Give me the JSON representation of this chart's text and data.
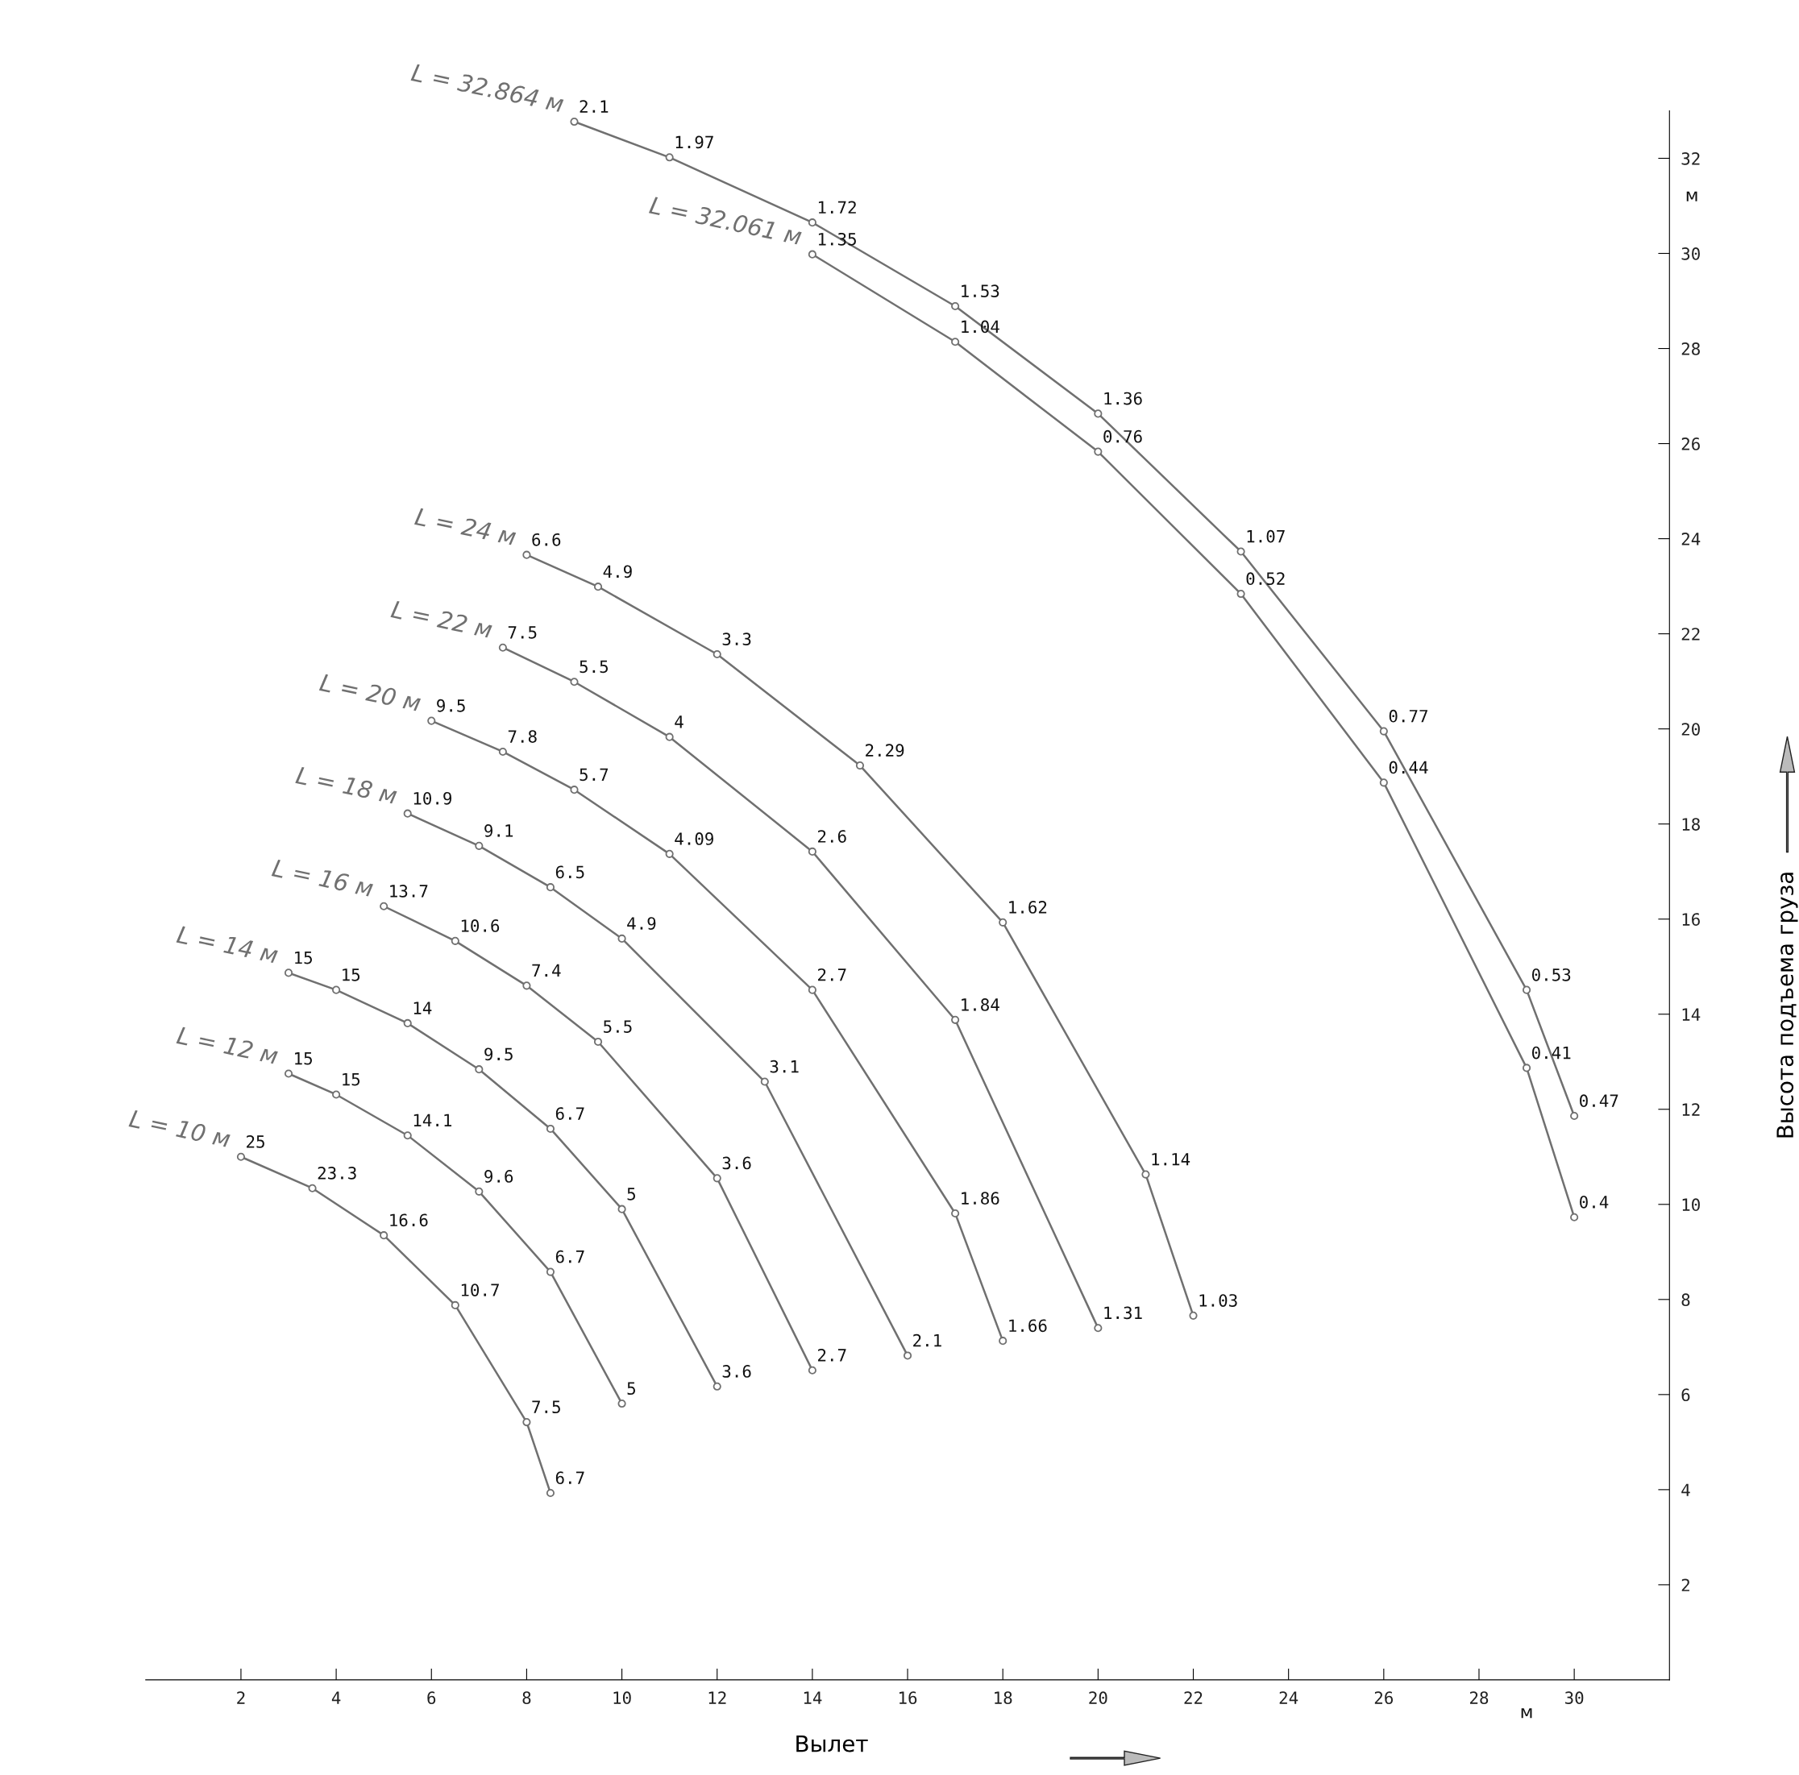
{
  "chart_data": {
    "type": "line",
    "xlabel": "Вылет",
    "ylabel": "Высота подъема груза",
    "xlim": [
      0,
      32
    ],
    "ylim": [
      0,
      33
    ],
    "xticks": [
      2,
      4,
      6,
      8,
      10,
      12,
      14,
      16,
      18,
      20,
      22,
      24,
      26,
      28,
      30
    ],
    "yticks": [
      2,
      4,
      6,
      8,
      10,
      12,
      14,
      16,
      18,
      20,
      22,
      24,
      26,
      28,
      30,
      32
    ],
    "grid": false,
    "legend": false,
    "marker": "circle",
    "line_style": "solid",
    "series": [
      {
        "name": "L = 10 м",
        "color": "#707070",
        "x": [
          2,
          3.5,
          5,
          6.5,
          8,
          8.5
        ],
        "values": [
          11,
          10.34,
          9.35,
          7.88,
          5.42,
          3.93
        ]
      },
      {
        "name": "L = 12 м",
        "color": "#707070",
        "x": [
          3,
          4,
          5.5,
          7,
          8.5,
          10
        ],
        "values": [
          12.75,
          12.31,
          11.45,
          10.27,
          8.58,
          5.81
        ]
      },
      {
        "name": "L = 14 м",
        "color": "#707070",
        "x": [
          3,
          4,
          5.5,
          7,
          8.5,
          10,
          12
        ],
        "values": [
          14.87,
          14.51,
          13.81,
          12.84,
          11.59,
          9.9,
          6.17
        ]
      },
      {
        "name": "L = 16 м",
        "color": "#707070",
        "x": [
          5,
          6.5,
          8,
          9.5,
          12,
          14
        ],
        "values": [
          16.27,
          15.54,
          14.6,
          13.42,
          10.55,
          6.51
        ]
      },
      {
        "name": "L = 18 м",
        "color": "#707070",
        "x": [
          5.5,
          7,
          8.5,
          10,
          13,
          16
        ],
        "values": [
          18.22,
          17.54,
          16.67,
          15.59,
          12.58,
          6.82
        ]
      },
      {
        "name": "L = 20 м",
        "color": "#707070",
        "x": [
          6,
          7.5,
          9,
          11,
          14,
          17,
          18
        ],
        "values": [
          20.17,
          19.52,
          18.72,
          17.37,
          14.51,
          9.81,
          7.13
        ]
      },
      {
        "name": "L = 22 м",
        "color": "#707070",
        "x": [
          7.5,
          9,
          11,
          14,
          17,
          20
        ],
        "values": [
          21.71,
          20.99,
          19.83,
          17.42,
          13.88,
          7.4
        ]
      },
      {
        "name": "L = 24 м",
        "color": "#707070",
        "x": [
          8,
          9.5,
          12,
          15,
          18,
          21,
          22
        ],
        "values": [
          23.66,
          22.99,
          21.57,
          19.23,
          15.93,
          10.63,
          7.66
        ]
      },
      {
        "name": "L = 32.061 м",
        "color": "#707070",
        "x": [
          14,
          17,
          20,
          23,
          26,
          29,
          30
        ],
        "values": [
          29.98,
          28.14,
          25.83,
          22.84,
          18.87,
          12.87,
          9.73
        ]
      },
      {
        "name": "L = 32.864 м",
        "color": "#707070",
        "x": [
          9,
          11,
          14,
          17,
          20,
          23,
          26,
          29,
          30
        ],
        "values": [
          32.77,
          32.02,
          30.65,
          28.89,
          26.63,
          23.73,
          19.95,
          14.51,
          11.86
        ]
      }
    ],
    "annotations": [
      "м",
      "м",
      {
        "text": "25",
        "x": 2,
        "y": 11
      },
      {
        "text": "23.3",
        "x": 3.5,
        "y": 10.34
      },
      {
        "text": "16.6",
        "x": 5,
        "y": 9.35
      },
      {
        "text": "10.7",
        "x": 6.5,
        "y": 7.88
      },
      {
        "text": "7.5",
        "x": 8,
        "y": 5.42
      },
      {
        "text": "6.7",
        "x": 8.5,
        "y": 3.93
      },
      {
        "text": "15",
        "x": 3,
        "y": 12.75
      },
      {
        "text": "15",
        "x": 4,
        "y": 12.31
      },
      {
        "text": "14.1",
        "x": 5.5,
        "y": 11.45
      },
      {
        "text": "9.6",
        "x": 7,
        "y": 10.27
      },
      {
        "text": "6.7",
        "x": 8.5,
        "y": 8.58
      },
      {
        "text": "5",
        "x": 10,
        "y": 5.81
      },
      {
        "text": "15",
        "x": 3,
        "y": 14.87
      },
      {
        "text": "15",
        "x": 4,
        "y": 14.51
      },
      {
        "text": "14",
        "x": 5.5,
        "y": 13.81
      },
      {
        "text": "9.5",
        "x": 7,
        "y": 12.84
      },
      {
        "text": "6.7",
        "x": 8.5,
        "y": 11.59
      },
      {
        "text": "5",
        "x": 10,
        "y": 9.9
      },
      {
        "text": "3.6",
        "x": 12,
        "y": 6.17
      },
      {
        "text": "13.7",
        "x": 5,
        "y": 16.27
      },
      {
        "text": "10.6",
        "x": 6.5,
        "y": 15.54
      },
      {
        "text": "7.4",
        "x": 8,
        "y": 14.6
      },
      {
        "text": "5.5",
        "x": 9.5,
        "y": 13.42
      },
      {
        "text": "3.6",
        "x": 12,
        "y": 10.55
      },
      {
        "text": "2.7",
        "x": 14,
        "y": 6.51
      },
      {
        "text": "10.9",
        "x": 5.5,
        "y": 18.22
      },
      {
        "text": "9.1",
        "x": 7,
        "y": 17.54
      },
      {
        "text": "6.5",
        "x": 8.5,
        "y": 16.67
      },
      {
        "text": "4.9",
        "x": 10,
        "y": 15.59
      },
      {
        "text": "3.1",
        "x": 13,
        "y": 12.58
      },
      {
        "text": "2.1",
        "x": 16,
        "y": 6.82
      },
      {
        "text": "9.5",
        "x": 6,
        "y": 20.17
      },
      {
        "text": "7.8",
        "x": 7.5,
        "y": 19.52
      },
      {
        "text": "5.7",
        "x": 9,
        "y": 18.72
      },
      {
        "text": "4.09",
        "x": 11,
        "y": 17.37
      },
      {
        "text": "2.7",
        "x": 14,
        "y": 14.51
      },
      {
        "text": "1.86",
        "x": 17,
        "y": 9.81
      },
      {
        "text": "1.66",
        "x": 18,
        "y": 7.13
      },
      {
        "text": "7.5",
        "x": 7.5,
        "y": 21.71
      },
      {
        "text": "5.5",
        "x": 9,
        "y": 20.99
      },
      {
        "text": "4",
        "x": 11,
        "y": 19.83
      },
      {
        "text": "2.6",
        "x": 14,
        "y": 17.42
      },
      {
        "text": "1.84",
        "x": 17,
        "y": 13.88
      },
      {
        "text": "1.31",
        "x": 20,
        "y": 7.4
      },
      {
        "text": "6.6",
        "x": 8,
        "y": 23.66
      },
      {
        "text": "4.9",
        "x": 9.5,
        "y": 22.99
      },
      {
        "text": "3.3",
        "x": 12,
        "y": 21.57
      },
      {
        "text": "2.29",
        "x": 15,
        "y": 19.23
      },
      {
        "text": "1.62",
        "x": 18,
        "y": 15.93
      },
      {
        "text": "1.14",
        "x": 21,
        "y": 10.63
      },
      {
        "text": "1.03",
        "x": 22,
        "y": 7.66
      },
      {
        "text": "1.35",
        "x": 14,
        "y": 29.98
      },
      {
        "text": "1.04",
        "x": 17,
        "y": 28.14
      },
      {
        "text": "0.76",
        "x": 20,
        "y": 25.83
      },
      {
        "text": "0.52",
        "x": 23,
        "y": 22.84
      },
      {
        "text": "0.44",
        "x": 26,
        "y": 18.87
      },
      {
        "text": "0.41",
        "x": 29,
        "y": 12.87
      },
      {
        "text": "0.4",
        "x": 30,
        "y": 9.73
      },
      {
        "text": "2.1",
        "x": 9,
        "y": 32.77
      },
      {
        "text": "1.97",
        "x": 11,
        "y": 32.02
      },
      {
        "text": "1.72",
        "x": 14,
        "y": 30.65
      },
      {
        "text": "1.53",
        "x": 17,
        "y": 28.89
      },
      {
        "text": "1.36",
        "x": 20,
        "y": 26.63
      },
      {
        "text": "1.07",
        "x": 23,
        "y": 23.73
      },
      {
        "text": "0.77",
        "x": 26,
        "y": 19.95
      },
      {
        "text": "0.53",
        "x": 29,
        "y": 14.51
      },
      {
        "text": "0.47",
        "x": 30,
        "y": 11.86
      }
    ]
  }
}
